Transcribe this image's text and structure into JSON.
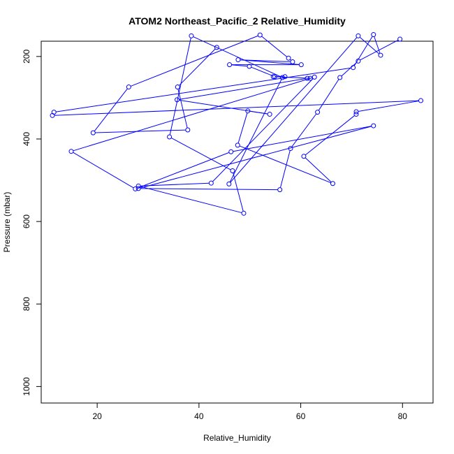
{
  "chart_data": {
    "type": "line",
    "title": "ATOM2 Northeast_Pacific_2 Relative_Humidity",
    "xlabel": "Relative_Humidity",
    "ylabel": "Pressure (mbar)",
    "xlim": [
      9,
      86
    ],
    "ylim": [
      1040,
      163
    ],
    "y_inverted": true,
    "grid": false,
    "x_ticks": [
      {
        "value": 20,
        "label": "20"
      },
      {
        "value": 40,
        "label": "40"
      },
      {
        "value": 60,
        "label": "60"
      },
      {
        "value": 80,
        "label": "80"
      }
    ],
    "y_ticks": [
      {
        "value": 200,
        "label": "200"
      },
      {
        "value": 400,
        "label": "400"
      },
      {
        "value": 600,
        "label": "600"
      },
      {
        "value": 800,
        "label": "800"
      },
      {
        "value": 1000,
        "label": "1000"
      }
    ],
    "series_color": "#0000ff",
    "marker": "open-circle",
    "points": [
      {
        "x": 43.5,
        "y": 178
      },
      {
        "x": 35.8,
        "y": 274
      },
      {
        "x": 37.8,
        "y": 378
      },
      {
        "x": 19.2,
        "y": 385
      },
      {
        "x": 26.2,
        "y": 274
      },
      {
        "x": 52,
        "y": 148
      },
      {
        "x": 57.6,
        "y": 204
      },
      {
        "x": 58.4,
        "y": 213
      },
      {
        "x": 47.7,
        "y": 208
      },
      {
        "x": 60.1,
        "y": 220
      },
      {
        "x": 46,
        "y": 220
      },
      {
        "x": 49.9,
        "y": 224
      },
      {
        "x": 54.9,
        "y": 249
      },
      {
        "x": 56.9,
        "y": 249
      },
      {
        "x": 54.6,
        "y": 249
      },
      {
        "x": 61.9,
        "y": 253
      },
      {
        "x": 61.3,
        "y": 253
      },
      {
        "x": 35.7,
        "y": 305
      },
      {
        "x": 53.9,
        "y": 340
      },
      {
        "x": 49.6,
        "y": 332
      },
      {
        "x": 47.6,
        "y": 415
      },
      {
        "x": 66.3,
        "y": 508
      },
      {
        "x": 60.6,
        "y": 442
      },
      {
        "x": 70.9,
        "y": 340
      },
      {
        "x": 70.9,
        "y": 334
      },
      {
        "x": 83.6,
        "y": 307
      },
      {
        "x": 11.2,
        "y": 343
      },
      {
        "x": 11.5,
        "y": 335
      },
      {
        "x": 70.3,
        "y": 227
      },
      {
        "x": 74.3,
        "y": 147
      },
      {
        "x": 75.7,
        "y": 197
      },
      {
        "x": 71.3,
        "y": 150
      },
      {
        "x": 45.9,
        "y": 509
      },
      {
        "x": 56.4,
        "y": 251
      },
      {
        "x": 38.5,
        "y": 150
      },
      {
        "x": 34.2,
        "y": 395
      },
      {
        "x": 46.6,
        "y": 477
      },
      {
        "x": 48.8,
        "y": 580
      },
      {
        "x": 28.1,
        "y": 514
      },
      {
        "x": 42.4,
        "y": 507
      },
      {
        "x": 62.7,
        "y": 250
      },
      {
        "x": 14.9,
        "y": 430
      },
      {
        "x": 27.5,
        "y": 521
      },
      {
        "x": 46.3,
        "y": 431
      },
      {
        "x": 74.3,
        "y": 368
      },
      {
        "x": 28.1,
        "y": 520
      },
      {
        "x": 55.9,
        "y": 523
      },
      {
        "x": 58,
        "y": 423
      },
      {
        "x": 63.3,
        "y": 335
      },
      {
        "x": 67.7,
        "y": 251
      },
      {
        "x": 71.3,
        "y": 211
      },
      {
        "x": 79.5,
        "y": 158
      }
    ]
  }
}
